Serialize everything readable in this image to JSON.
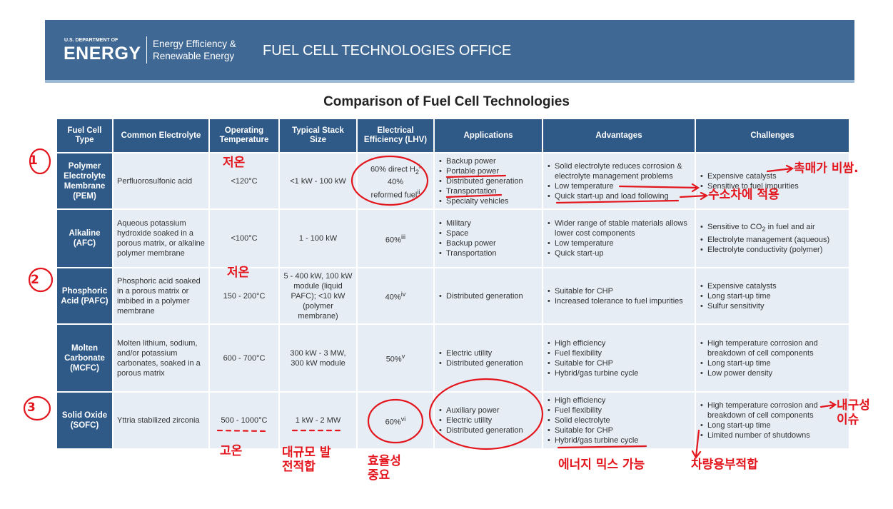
{
  "header": {
    "org_top": "U.S. DEPARTMENT OF",
    "org": "ENERGY",
    "division": [
      "Energy Efficiency &",
      "Renewable Energy"
    ],
    "office": "FUEL CELL TECHNOLOGIES OFFICE"
  },
  "title": "Comparison of Fuel Cell Technologies",
  "table": {
    "headers": [
      "Fuel Cell Type",
      "Common Electrolyte",
      "Operating Temperature",
      "Typical Stack Size",
      "Electrical Efficiency (LHV)",
      "Applications",
      "Advantages",
      "Challenges"
    ],
    "rows": [
      {
        "type": "Polymer Electrolyte Membrane (PEM)",
        "electrolyte": "Perfluorosulfonic acid",
        "temperature": "<120°C",
        "stack": "<1 kW - 100 kW",
        "efficiency": [
          [
            "60% direct H",
            {
              "sub": "2"
            },
            {
              "sup": "i"
            }
          ],
          "40%",
          [
            "reformed fuel",
            {
              "sup": "ii"
            }
          ]
        ],
        "applications": [
          "Backup power",
          "Portable power",
          "Distributed generation",
          "Transportation",
          "Specialty vehicles"
        ],
        "advantages": [
          "Solid electrolyte reduces corrosion & electrolyte management problems",
          "Low temperature",
          "Quick start-up and load following"
        ],
        "challenges": [
          "Expensive catalysts",
          "Sensitive to fuel impurities"
        ]
      },
      {
        "type": "Alkaline (AFC)",
        "electrolyte": "Aqueous potassium hydroxide soaked in a porous matrix, or alkaline polymer membrane",
        "temperature": "<100°C",
        "stack": "1 - 100 kW",
        "efficiency": [
          [
            "60%",
            {
              "sup": "iii"
            }
          ]
        ],
        "applications": [
          "Military",
          "Space",
          "Backup power",
          "Transportation"
        ],
        "advantages": [
          "Wider range of stable materials allows lower cost components",
          "Low temperature",
          "Quick start-up"
        ],
        "challenges": [
          [
            "Sensitive to CO",
            {
              "sub": "2"
            },
            " in fuel and air"
          ],
          "Electrolyte management (aqueous)",
          "Electrolyte conductivity (polymer)"
        ]
      },
      {
        "type": "Phosphoric Acid (PAFC)",
        "electrolyte": "Phosphoric acid soaked in a porous matrix or imbibed in a polymer membrane",
        "temperature": "150 - 200°C",
        "stack": "5 - 400 kW, 100 kW module (liquid PAFC); <10 kW (polymer membrane)",
        "efficiency": [
          [
            "40%",
            {
              "sup": "iv"
            }
          ]
        ],
        "applications": [
          "Distributed generation"
        ],
        "advantages": [
          "Suitable for CHP",
          "Increased tolerance to fuel impurities"
        ],
        "challenges": [
          "Expensive catalysts",
          "Long start-up time",
          "Sulfur sensitivity"
        ]
      },
      {
        "type": "Molten Carbonate (MCFC)",
        "electrolyte": "Molten lithium, sodium, and/or potassium carbonates, soaked in a porous matrix",
        "temperature": "600 - 700°C",
        "stack": "300 kW - 3 MW, 300 kW module",
        "efficiency": [
          [
            "50%",
            {
              "sup": "v"
            }
          ]
        ],
        "applications": [
          "Electric utility",
          "Distributed generation"
        ],
        "advantages": [
          "High efficiency",
          "Fuel flexibility",
          "Suitable for CHP",
          "Hybrid/gas turbine cycle"
        ],
        "challenges": [
          "High temperature corrosion and breakdown of cell components",
          "Long start-up time",
          "Low power density"
        ]
      },
      {
        "type": "Solid Oxide (SOFC)",
        "electrolyte": "Yttria stabilized zirconia",
        "temperature": "500 - 1000°C",
        "stack": "1 kW - 2 MW",
        "efficiency": [
          [
            "60%",
            {
              "sup": "vi"
            }
          ]
        ],
        "applications": [
          "Auxiliary power",
          "Electric utility",
          "Distributed generation"
        ],
        "advantages": [
          "High efficiency",
          "Fuel flexibility",
          "Solid electrolyte",
          "Suitable for CHP",
          "Hybrid/gas turbine cycle"
        ],
        "challenges": [
          "High temperature corrosion and breakdown of cell components",
          "Long start-up time",
          "Limited number of shutdowns"
        ]
      }
    ]
  },
  "annotations": {
    "numbers": [
      "1",
      "2",
      "3"
    ],
    "notes": [
      "저온",
      "저온",
      "고온",
      "대규모 발전적합",
      "효율성 중요",
      "에너지 믹스 가능",
      "차량용부적합",
      "내구성 이슈",
      "촉매가 비쌈.",
      "수소차에 적용"
    ]
  }
}
